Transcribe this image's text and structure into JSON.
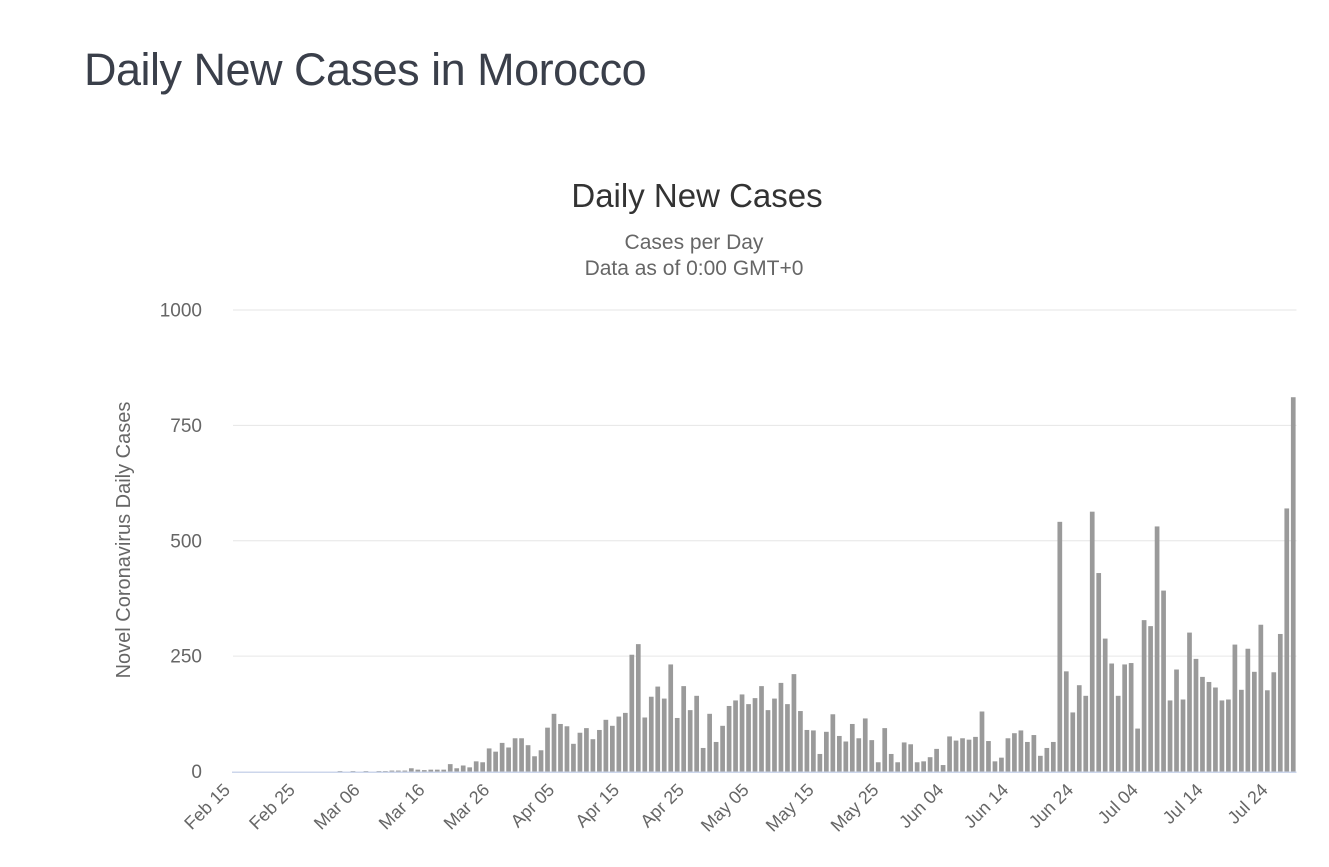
{
  "page": {
    "title": "Daily New Cases in Morocco"
  },
  "colors": {
    "page_title": "#3a3f4a",
    "chart_title": "#333333",
    "chart_subtitle": "#666666",
    "axis_labels": "#666666",
    "gridline": "#e6e6e6",
    "x_axis_line": "#ccd6eb",
    "bar": "#9a9a9a",
    "background": "#ffffff"
  },
  "chart_data": {
    "type": "bar",
    "title": "Daily New Cases",
    "subtitle_lines": [
      "Cases per Day",
      "Data as of 0:00 GMT+0"
    ],
    "xlabel": "",
    "ylabel": "Novel Coronavirus Daily Cases",
    "ylim": [
      0,
      1000
    ],
    "yticks": [
      0,
      250,
      500,
      750,
      1000
    ],
    "grid": true,
    "legend": false,
    "xtick_every": 10,
    "xtick_labels": [
      "Feb 15",
      "Feb 25",
      "Mar 06",
      "Mar 16",
      "Mar 26",
      "Apr 05",
      "Apr 15",
      "Apr 25",
      "May 05",
      "May 15",
      "May 25",
      "Jun 04",
      "Jun 14",
      "Jun 24",
      "Jul 04",
      "Jul 14",
      "Jul 24"
    ],
    "categories": [
      "Feb 15",
      "Feb 16",
      "Feb 17",
      "Feb 18",
      "Feb 19",
      "Feb 20",
      "Feb 21",
      "Feb 22",
      "Feb 23",
      "Feb 24",
      "Feb 25",
      "Feb 26",
      "Feb 27",
      "Feb 28",
      "Feb 29",
      "Mar 01",
      "Mar 02",
      "Mar 03",
      "Mar 04",
      "Mar 05",
      "Mar 06",
      "Mar 07",
      "Mar 08",
      "Mar 09",
      "Mar 10",
      "Mar 11",
      "Mar 12",
      "Mar 13",
      "Mar 14",
      "Mar 15",
      "Mar 16",
      "Mar 17",
      "Mar 18",
      "Mar 19",
      "Mar 20",
      "Mar 21",
      "Mar 22",
      "Mar 23",
      "Mar 24",
      "Mar 25",
      "Mar 26",
      "Mar 27",
      "Mar 28",
      "Mar 29",
      "Mar 30",
      "Mar 31",
      "Apr 01",
      "Apr 02",
      "Apr 03",
      "Apr 04",
      "Apr 05",
      "Apr 06",
      "Apr 07",
      "Apr 08",
      "Apr 09",
      "Apr 10",
      "Apr 11",
      "Apr 12",
      "Apr 13",
      "Apr 14",
      "Apr 15",
      "Apr 16",
      "Apr 17",
      "Apr 18",
      "Apr 19",
      "Apr 20",
      "Apr 21",
      "Apr 22",
      "Apr 23",
      "Apr 24",
      "Apr 25",
      "Apr 26",
      "Apr 27",
      "Apr 28",
      "Apr 29",
      "Apr 30",
      "May 01",
      "May 02",
      "May 03",
      "May 04",
      "May 05",
      "May 06",
      "May 07",
      "May 08",
      "May 09",
      "May 10",
      "May 11",
      "May 12",
      "May 13",
      "May 14",
      "May 15",
      "May 16",
      "May 17",
      "May 18",
      "May 19",
      "May 20",
      "May 21",
      "May 22",
      "May 23",
      "May 24",
      "May 25",
      "May 26",
      "May 27",
      "May 28",
      "May 29",
      "May 30",
      "May 31",
      "Jun 01",
      "Jun 02",
      "Jun 03",
      "Jun 04",
      "Jun 05",
      "Jun 06",
      "Jun 07",
      "Jun 08",
      "Jun 09",
      "Jun 10",
      "Jun 11",
      "Jun 12",
      "Jun 13",
      "Jun 14",
      "Jun 15",
      "Jun 16",
      "Jun 17",
      "Jun 18",
      "Jun 19",
      "Jun 20",
      "Jun 21",
      "Jun 22",
      "Jun 23",
      "Jun 24",
      "Jun 25",
      "Jun 26",
      "Jun 27",
      "Jun 28",
      "Jun 29",
      "Jun 30",
      "Jul 01",
      "Jul 02",
      "Jul 03",
      "Jul 04",
      "Jul 05",
      "Jul 06",
      "Jul 07",
      "Jul 08",
      "Jul 09",
      "Jul 10",
      "Jul 11",
      "Jul 12",
      "Jul 13",
      "Jul 14",
      "Jul 15",
      "Jul 16",
      "Jul 17",
      "Jul 18",
      "Jul 19",
      "Jul 20",
      "Jul 21",
      "Jul 22",
      "Jul 23",
      "Jul 24",
      "Jul 25",
      "Jul 26",
      "Jul 27"
    ],
    "values": [
      0,
      0,
      0,
      0,
      0,
      0,
      0,
      0,
      0,
      0,
      0,
      0,
      0,
      0,
      0,
      0,
      1,
      0,
      1,
      0,
      1,
      0,
      1,
      1,
      2,
      2,
      2,
      7,
      4,
      3,
      4,
      4,
      4,
      16,
      7,
      13,
      9,
      22,
      20,
      50,
      43,
      62,
      52,
      72,
      72,
      57,
      33,
      46,
      95,
      125,
      103,
      98,
      60,
      84,
      94,
      70,
      90,
      112,
      99,
      119,
      127,
      253,
      276,
      117,
      162,
      184,
      158,
      232,
      116,
      185,
      133,
      164,
      51,
      125,
      64,
      99,
      142,
      154,
      167,
      146,
      159,
      185,
      133,
      158,
      192,
      146,
      211,
      131,
      90,
      89,
      38,
      86,
      124,
      77,
      65,
      103,
      72,
      115,
      68,
      20,
      94,
      38,
      20,
      63,
      59,
      20,
      22,
      31,
      49,
      14,
      76,
      67,
      72,
      69,
      75,
      130,
      66,
      22,
      30,
      72,
      83,
      89,
      64,
      79,
      34,
      51,
      64,
      541,
      217,
      128,
      187,
      164,
      563,
      430,
      288,
      234,
      164,
      232,
      235,
      93,
      328,
      315,
      531,
      392,
      154,
      221,
      156,
      301,
      244,
      205,
      194,
      182,
      154,
      156,
      275,
      177,
      266,
      216,
      318,
      176,
      215,
      298,
      570,
      811
    ],
    "bar_color": "#9a9a9a"
  }
}
